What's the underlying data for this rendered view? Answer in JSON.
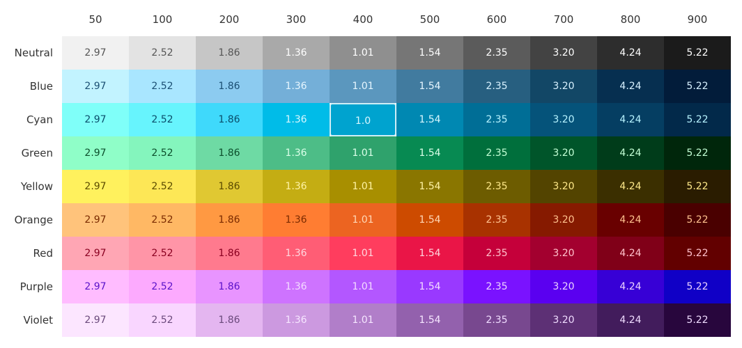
{
  "columns": [
    "50",
    "100",
    "200",
    "300",
    "400",
    "500",
    "600",
    "700",
    "800",
    "900"
  ],
  "rows": [
    {
      "label": "Neutral",
      "values": [
        "2.97",
        "2.52",
        "1.86",
        "1.36",
        "1.01",
        "1.54",
        "2.35",
        "3.20",
        "4.24",
        "5.22"
      ],
      "bg": [
        "#f1f1f1",
        "#e3e3e3",
        "#c6c6c6",
        "#a9a9a9",
        "#8f8f8f",
        "#767676",
        "#5b5b5b",
        "#434343",
        "#2d2d2d",
        "#1b1b1b"
      ],
      "fg": [
        "#555555",
        "#555555",
        "#555555",
        "#ffffff",
        "#ffffff",
        "#ffffff",
        "#ffffff",
        "#ffffff",
        "#ffffff",
        "#ffffff"
      ]
    },
    {
      "label": "Blue",
      "values": [
        "2.97",
        "2.52",
        "1.86",
        "1.36",
        "1.01",
        "1.54",
        "2.35",
        "3.20",
        "4.24",
        "5.22"
      ],
      "bg": [
        "#c2f3ff",
        "#a9e6ff",
        "#8ccbf0",
        "#74afd8",
        "#5b97be",
        "#417b9f",
        "#275f80",
        "#124766",
        "#062f50",
        "#021c3a"
      ],
      "fg": [
        "#1b4f73",
        "#1b4f73",
        "#1b4f73",
        "#e6f6ff",
        "#e6f6ff",
        "#e6f6ff",
        "#d8f2ff",
        "#d8f2ff",
        "#d8f2ff",
        "#d8f2ff"
      ]
    },
    {
      "label": "Cyan",
      "values": [
        "2.97",
        "2.52",
        "1.86",
        "1.36",
        "1.0",
        "1.54",
        "2.35",
        "3.20",
        "4.24",
        "5.22"
      ],
      "bg": [
        "#7ffff9",
        "#67f4fd",
        "#3fd9fb",
        "#00bce8",
        "#00a3cf",
        "#0088b2",
        "#006e96",
        "#05537a",
        "#053e62",
        "#02294a"
      ],
      "fg": [
        "#0a4d6a",
        "#0a4d6a",
        "#0a4d6a",
        "#d9f8ff",
        "#d9f8ff",
        "#d9f8ff",
        "#b7f3ff",
        "#b7f3ff",
        "#b7f3ff",
        "#b7f3ff"
      ]
    },
    {
      "label": "Green",
      "values": [
        "2.97",
        "2.52",
        "1.86",
        "1.36",
        "1.01",
        "1.54",
        "2.35",
        "3.20",
        "4.24",
        "5.22"
      ],
      "bg": [
        "#8ffec8",
        "#84f5bd",
        "#6edaa4",
        "#4dbd87",
        "#2fa26c",
        "#078a52",
        "#006f3c",
        "#00552a",
        "#003c1a",
        "#00260b"
      ],
      "fg": [
        "#0c4e2b",
        "#0c4e2b",
        "#0c4e2b",
        "#dbffe9",
        "#dbffe9",
        "#dbffe9",
        "#c4ffd6",
        "#c4ffd6",
        "#c4ffd6",
        "#c4ffd6"
      ]
    },
    {
      "label": "Yellow",
      "values": [
        "2.97",
        "2.52",
        "1.86",
        "1.36",
        "1.01",
        "1.54",
        "2.35",
        "3.20",
        "4.24",
        "5.22"
      ],
      "bg": [
        "#fff15d",
        "#fde756",
        "#e0c832",
        "#c4ad13",
        "#a88f00",
        "#8a7600",
        "#6d5c00",
        "#534400",
        "#3b2f00",
        "#2a1c00"
      ],
      "fg": [
        "#5b4b00",
        "#5b4b00",
        "#5b4b00",
        "#fff3a6",
        "#fff3a6",
        "#fff3a6",
        "#ffe98a",
        "#ffe98a",
        "#ffe98a",
        "#ffe98a"
      ]
    },
    {
      "label": "Orange",
      "values": [
        "2.97",
        "2.52",
        "1.86",
        "1.36",
        "1.01",
        "1.54",
        "2.35",
        "3.20",
        "4.24",
        "5.22"
      ],
      "bg": [
        "#ffc37b",
        "#ffb864",
        "#ff9942",
        "#ff7d32",
        "#ec6421",
        "#cd4b00",
        "#a83200",
        "#861a00",
        "#690000",
        "#4a0000"
      ],
      "fg": [
        "#7a2a00",
        "#7a2a00",
        "#7a2a00",
        "#7a2a00",
        "#ffd8b8",
        "#ffd8b8",
        "#ffc28f",
        "#ffc28f",
        "#ffc28f",
        "#ffc28f"
      ]
    },
    {
      "label": "Red",
      "values": [
        "2.97",
        "2.52",
        "1.86",
        "1.36",
        "1.01",
        "1.54",
        "2.35",
        "3.20",
        "4.24",
        "5.22"
      ],
      "bg": [
        "#ffa6b4",
        "#ff95a7",
        "#ff7a8e",
        "#ff5d75",
        "#ff3d5e",
        "#ea1547",
        "#c5003a",
        "#a3002f",
        "#800018",
        "#620000"
      ],
      "fg": [
        "#8a0020",
        "#8a0020",
        "#8a0020",
        "#ffd6de",
        "#ffd6de",
        "#ffd6de",
        "#ffc2cc",
        "#ffc2cc",
        "#ffc2cc",
        "#ffc2cc"
      ]
    },
    {
      "label": "Purple",
      "values": [
        "2.97",
        "2.52",
        "1.86",
        "1.36",
        "1.01",
        "1.54",
        "2.35",
        "3.20",
        "4.24",
        "5.22"
      ],
      "bg": [
        "#ffbcff",
        "#fcaafe",
        "#e894ff",
        "#ce73ff",
        "#b357ff",
        "#9939ff",
        "#7a12ff",
        "#5a00f0",
        "#3700d6",
        "#1000c6"
      ],
      "fg": [
        "#5a12c9",
        "#5a12c9",
        "#5a12c9",
        "#f4dcff",
        "#f4dcff",
        "#f4dcff",
        "#ecd3ff",
        "#ecd3ff",
        "#ecd3ff",
        "#ecd3ff"
      ]
    },
    {
      "label": "Violet",
      "values": [
        "2.97",
        "2.52",
        "1.86",
        "1.36",
        "1.01",
        "1.54",
        "2.35",
        "3.20",
        "4.24",
        "5.22"
      ],
      "bg": [
        "#fce6ff",
        "#f9d6ff",
        "#e4b6f0",
        "#cc99e0",
        "#b17ec9",
        "#9361ad",
        "#78488f",
        "#5d3075",
        "#421c5c",
        "#28063d"
      ],
      "fg": [
        "#6b4a7c",
        "#6b4a7c",
        "#6b4a7c",
        "#f6e6ff",
        "#f6e6ff",
        "#f6e6ff",
        "#f0dcff",
        "#f0dcff",
        "#f0dcff",
        "#f0dcff"
      ]
    }
  ],
  "selected": {
    "row": 2,
    "col": 4
  }
}
